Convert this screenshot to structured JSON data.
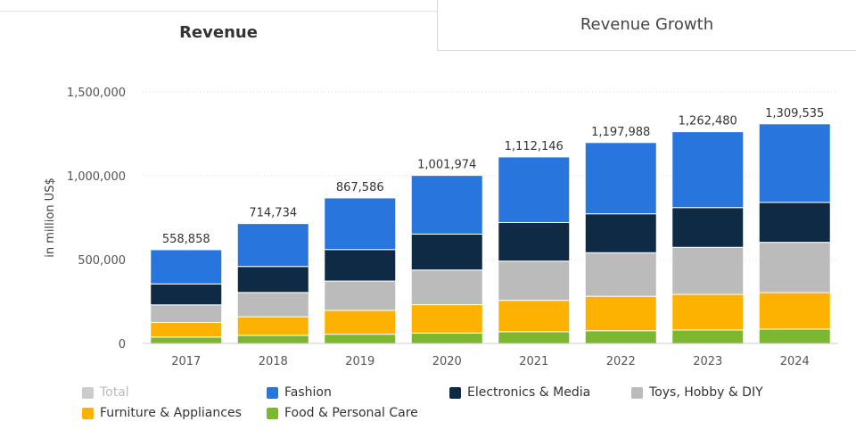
{
  "tabs": [
    {
      "label": "Revenue",
      "active": true
    },
    {
      "label": "Revenue Growth",
      "active": false
    }
  ],
  "chart_data": {
    "type": "bar",
    "stacked": true,
    "categories": [
      "2017",
      "2018",
      "2019",
      "2020",
      "2021",
      "2022",
      "2023",
      "2024"
    ],
    "ylabel": "in million US$",
    "xlabel": "",
    "ylim": [
      0,
      1500000
    ],
    "yticks": [
      0,
      500000,
      1000000,
      1500000
    ],
    "ytick_labels": [
      "0",
      "500,000",
      "1,000,000",
      "1,500,000"
    ],
    "grid": true,
    "legend_position": "bottom",
    "totals": [
      558858,
      714734,
      867586,
      1001974,
      1112146,
      1197988,
      1262480,
      1309535
    ],
    "total_labels": [
      "558,858",
      "714,734",
      "867,586",
      "1,001,974",
      "1,112,146",
      "1,197,988",
      "1,262,480",
      "1,309,535"
    ],
    "series": [
      {
        "name": "Food & Personal Care",
        "color": "#7cb82f",
        "values": [
          38000,
          48000,
          55000,
          62000,
          70000,
          76000,
          80000,
          85000
        ]
      },
      {
        "name": "Furniture & Appliances",
        "color": "#fdb100",
        "values": [
          87000,
          111000,
          142000,
          169000,
          187000,
          205000,
          213000,
          218000
        ]
      },
      {
        "name": "Toys, Hobby & DIY",
        "color": "#bbbbbb",
        "values": [
          105000,
          145000,
          175000,
          207000,
          234000,
          260000,
          280000,
          300000
        ]
      },
      {
        "name": "Electronics & Media",
        "color": "#0f2a44",
        "values": [
          125000,
          155000,
          188000,
          214000,
          230000,
          232000,
          237000,
          238000
        ]
      },
      {
        "name": "Fashion",
        "color": "#2876dd",
        "values": [
          203858,
          255734,
          307586,
          349974,
          391146,
          424988,
          452480,
          468535
        ]
      }
    ],
    "legend": [
      {
        "name": "Total",
        "color": "#cccccc",
        "disabled": true
      },
      {
        "name": "Fashion",
        "color": "#2876dd",
        "disabled": false
      },
      {
        "name": "Electronics & Media",
        "color": "#0f2a44",
        "disabled": false
      },
      {
        "name": "Toys, Hobby & DIY",
        "color": "#bbbbbb",
        "disabled": false
      },
      {
        "name": "Furniture & Appliances",
        "color": "#fdb100",
        "disabled": false
      },
      {
        "name": "Food & Personal Care",
        "color": "#7cb82f",
        "disabled": false
      }
    ]
  }
}
